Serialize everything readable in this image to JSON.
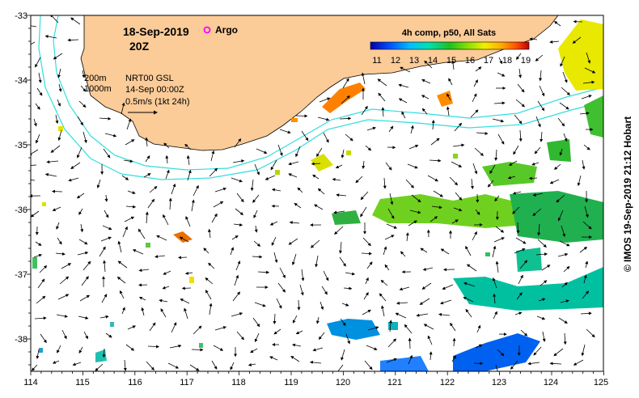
{
  "map": {
    "date": "18-Sep-2019",
    "time": "20Z",
    "argo_label": "Argo",
    "colorbar_title": "4h comp, p50, All Sats",
    "colorbar_ticks": [
      "11",
      "12",
      "13",
      "14",
      "15",
      "16",
      "17",
      "18",
      "19"
    ],
    "contour_200": "200m",
    "contour_1000": "1000m",
    "product": "NRT00 GSL",
    "product_time": "14-Sep 00:00Z",
    "vector_scale": "0.5m/s (1kt 24h)",
    "credit": "© IMOS 19-Sep-2019 21:12 Hobart",
    "x_ticks": [
      "114",
      "115",
      "116",
      "117",
      "118",
      "119",
      "120",
      "121",
      "122",
      "123",
      "124",
      "125"
    ],
    "y_ticks": [
      "-33",
      "-34",
      "-35",
      "-36",
      "-37",
      "-38"
    ]
  },
  "colors": {
    "land": "#fbcb98",
    "contour": "#33dddd",
    "argo": "#ff00ff",
    "colorbar": [
      "#0000aa",
      "#0050ff",
      "#00bfff",
      "#00e0b0",
      "#20c020",
      "#90e000",
      "#f0f000",
      "#ffb000",
      "#ff5000",
      "#c00000"
    ]
  }
}
